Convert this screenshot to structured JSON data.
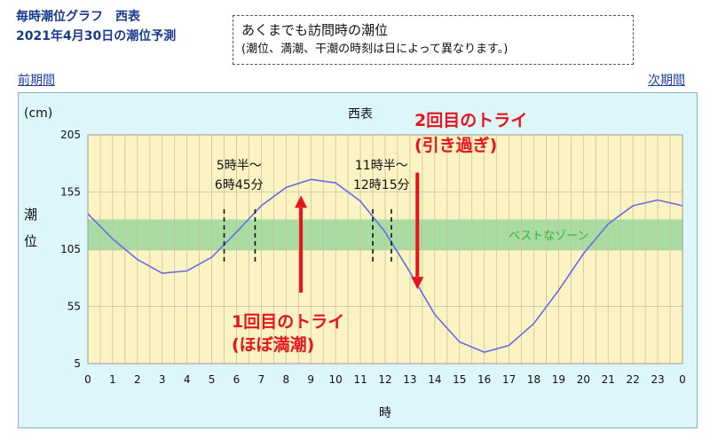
{
  "header": {
    "title_line1": "毎時潮位グラフ　西表",
    "title_line2": "2021年4月30日の潮位予測"
  },
  "note": {
    "line1": "あくまでも訪問時の潮位",
    "line2": "(潮位、満潮、干潮の時刻は日によって異なります。)"
  },
  "nav": {
    "prev": "前期間",
    "next": "次期間"
  },
  "chart_data": {
    "type": "line",
    "title": "西表",
    "ylabel_unit": "(cm)",
    "ylabel_chars": [
      "潮",
      "位"
    ],
    "xlabel": "時",
    "ylim": [
      5,
      205
    ],
    "yticks": [
      5,
      55,
      105,
      155,
      205
    ],
    "xlim": [
      0,
      24
    ],
    "x_tick_labels": [
      "0",
      "1",
      "2",
      "3",
      "4",
      "5",
      "6",
      "7",
      "8",
      "9",
      "10",
      "11",
      "12",
      "13",
      "14",
      "15",
      "16",
      "17",
      "18",
      "19",
      "20",
      "21",
      "22",
      "23",
      "0"
    ],
    "x": [
      0,
      1,
      2,
      3,
      4,
      5,
      6,
      7,
      8,
      9,
      10,
      11,
      12,
      13,
      14,
      15,
      16,
      17,
      18,
      19,
      20,
      21,
      22,
      23,
      24
    ],
    "values": [
      136,
      114,
      96,
      84,
      86,
      98,
      120,
      143,
      159,
      166,
      163,
      147,
      120,
      85,
      48,
      24,
      15,
      21,
      40,
      69,
      101,
      127,
      143,
      148,
      143
    ],
    "series_color": "#6a6ae8",
    "best_zone": {
      "label": "ベストなゾーン",
      "min": 104,
      "max": 131,
      "color": "#a8dca0"
    },
    "half_hour_gridlines": true,
    "annotations": {
      "dashed_lines": [
        5.5,
        6.75,
        11.5,
        12.25
      ],
      "window1": {
        "line1": "5時半～",
        "line2": "6時45分",
        "x_center": 6.1
      },
      "window2": {
        "line1": "11時半～",
        "line2": "12時15分",
        "x_center": 11.85
      },
      "try1": {
        "line1": "1回目のトライ",
        "line2": "(ほぼ満潮)",
        "arrow_x": 8.6,
        "arrow_from": 67,
        "arrow_to": 152
      },
      "try2": {
        "line1": "2回目のトライ",
        "line2": "(引き過ぎ)",
        "arrow_x": 13.3,
        "arrow_from": 172,
        "arrow_to": 70
      },
      "arrow_color": "#e8141c"
    }
  }
}
